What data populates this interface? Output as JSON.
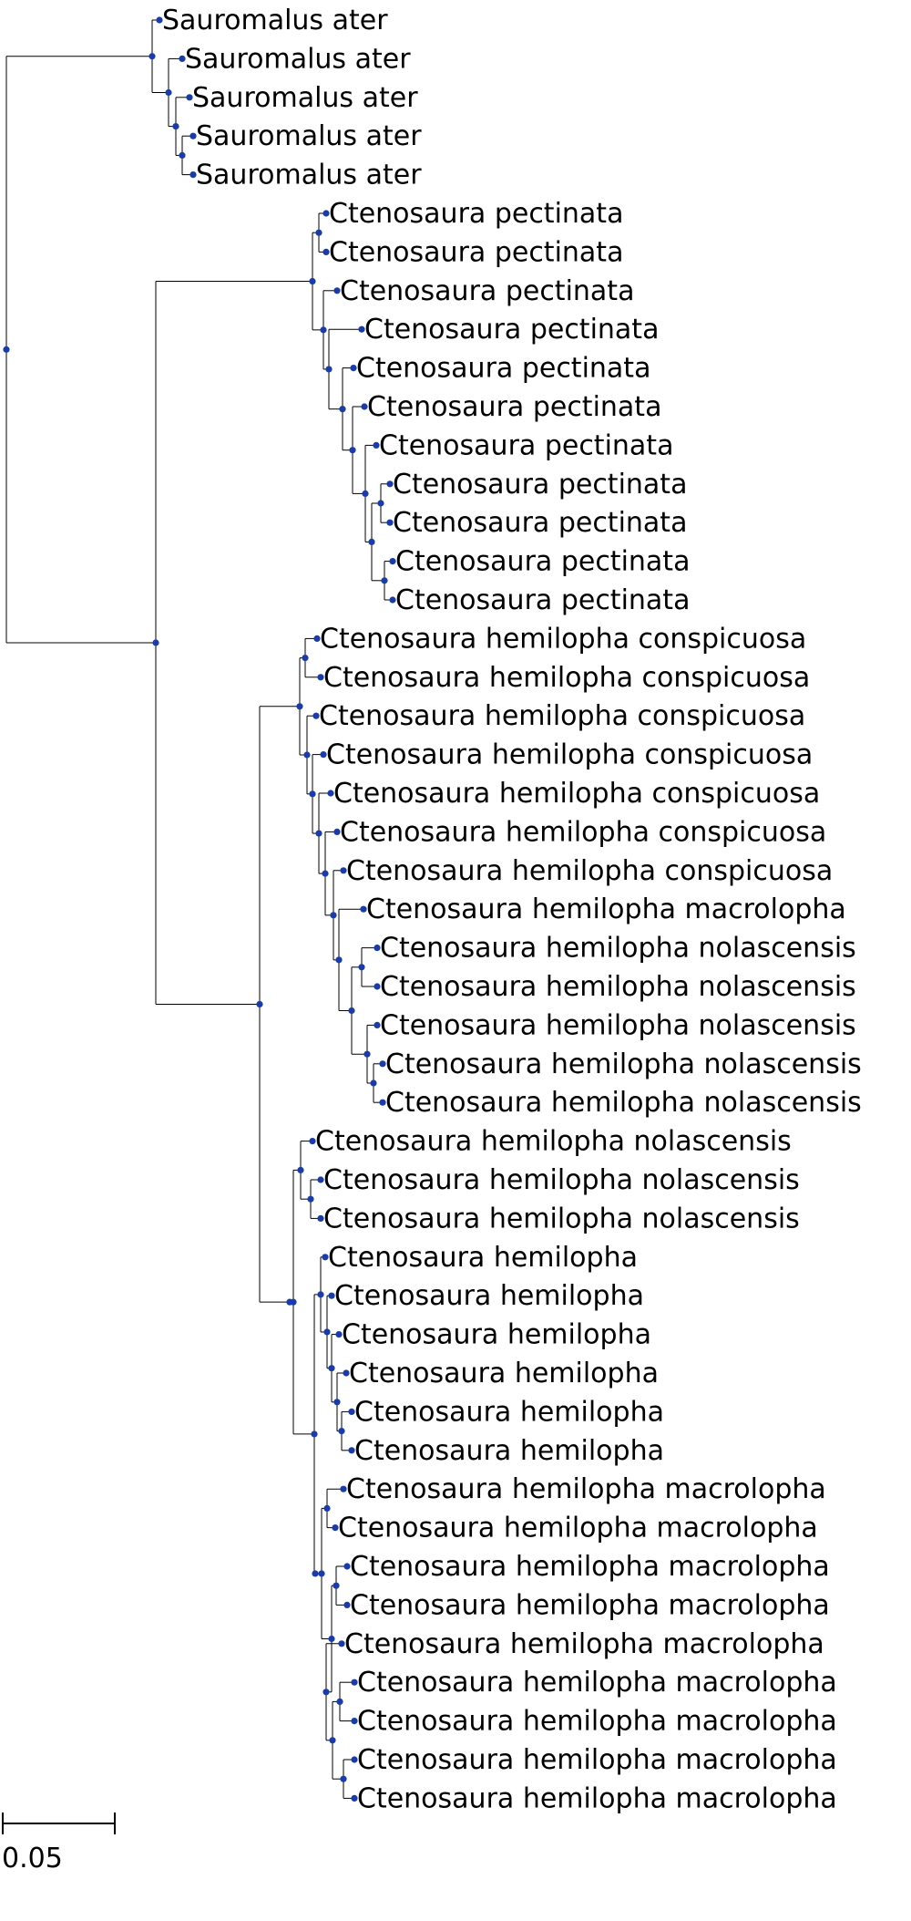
{
  "tree": {
    "node_color": "#1a3caa",
    "branch_color": "#000000",
    "leaves": [
      "Sauromalus ater",
      "Sauromalus ater",
      "Sauromalus ater",
      "Sauromalus ater",
      "Sauromalus ater",
      "Ctenosaura pectinata",
      "Ctenosaura pectinata",
      "Ctenosaura pectinata",
      "Ctenosaura pectinata",
      "Ctenosaura pectinata",
      "Ctenosaura pectinata",
      "Ctenosaura pectinata",
      "Ctenosaura pectinata",
      "Ctenosaura pectinata",
      "Ctenosaura pectinata",
      "Ctenosaura pectinata",
      "Ctenosaura hemilopha conspicuosa",
      "Ctenosaura hemilopha conspicuosa",
      "Ctenosaura hemilopha conspicuosa",
      "Ctenosaura hemilopha conspicuosa",
      "Ctenosaura hemilopha conspicuosa",
      "Ctenosaura hemilopha conspicuosa",
      "Ctenosaura hemilopha conspicuosa",
      "Ctenosaura hemilopha macrolopha",
      "Ctenosaura hemilopha nolascensis",
      "Ctenosaura hemilopha nolascensis",
      "Ctenosaura hemilopha nolascensis",
      "Ctenosaura hemilopha nolascensis",
      "Ctenosaura hemilopha nolascensis",
      "Ctenosaura hemilopha nolascensis",
      "Ctenosaura hemilopha nolascensis",
      "Ctenosaura hemilopha nolascensis",
      "Ctenosaura hemilopha",
      "Ctenosaura hemilopha",
      "Ctenosaura hemilopha",
      "Ctenosaura hemilopha",
      "Ctenosaura hemilopha",
      "Ctenosaura hemilopha",
      "Ctenosaura hemilopha macrolopha",
      "Ctenosaura hemilopha macrolopha",
      "Ctenosaura hemilopha macrolopha",
      "Ctenosaura hemilopha macrolopha",
      "Ctenosaura hemilopha macrolopha",
      "Ctenosaura hemilopha macrolopha",
      "Ctenosaura hemilopha macrolopha",
      "Ctenosaura hemilopha macrolopha",
      "Ctenosaura hemilopha macrolopha"
    ],
    "scale_bar": {
      "label": "0.05",
      "length": 0.05
    }
  }
}
